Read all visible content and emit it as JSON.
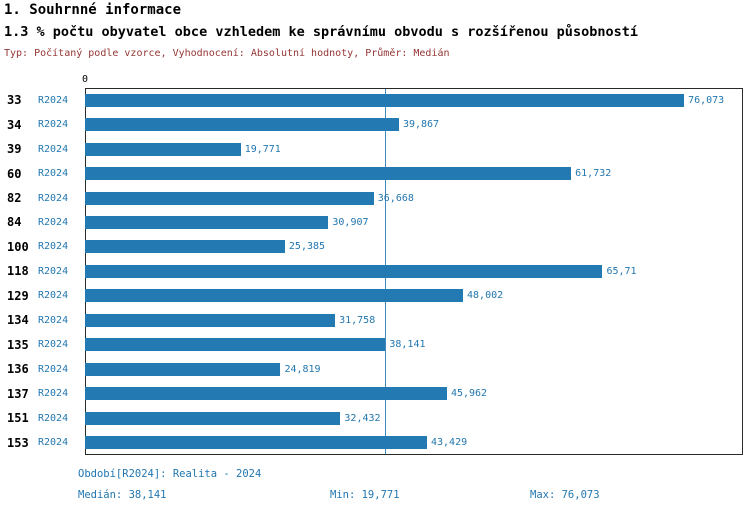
{
  "header": {
    "title": "1. Souhrnné informace",
    "subtitle": "1.3 % počtu obyvatel obce vzhledem ke správnímu obvodu s rozšířenou působností",
    "meta": "Typ: Počítaný podle vzorce, Vyhodnocení: Absolutní hodnoty, Průměr: Medián"
  },
  "chart_data": {
    "type": "bar",
    "orientation": "horizontal",
    "title": "1.3 % počtu obyvatel obce vzhledem ke správnímu obvodu s rozšířenou působností",
    "period_label": "R2024",
    "categories": [
      "33",
      "34",
      "39",
      "60",
      "82",
      "84",
      "100",
      "118",
      "129",
      "134",
      "135",
      "136",
      "137",
      "151",
      "153"
    ],
    "values": [
      76.073,
      39.867,
      19.771,
      61.732,
      36.668,
      30.907,
      25.385,
      65.71,
      48.002,
      31.758,
      38.141,
      24.819,
      45.962,
      32.432,
      43.429
    ],
    "value_labels": [
      "76,073",
      "39,867",
      "19,771",
      "61,732",
      "36,668",
      "30,907",
      "25,385",
      "65,71",
      "48,002",
      "31,758",
      "38,141",
      "24,819",
      "45,962",
      "32,432",
      "43,429"
    ],
    "median": 38.141,
    "min": 19.771,
    "max": 76.073,
    "x_axis": {
      "origin_label": "0",
      "min": 0,
      "max": 83.68
    },
    "grid": false,
    "legend": false,
    "bar_color": "#2379b2",
    "accent_color": "#2277b0",
    "median_line": true
  },
  "footer": {
    "period": "Období[R2024]: Realita - 2024",
    "median": "Medián: 38,141",
    "min": "Min: 19,771",
    "max": "Max: 76,073"
  }
}
